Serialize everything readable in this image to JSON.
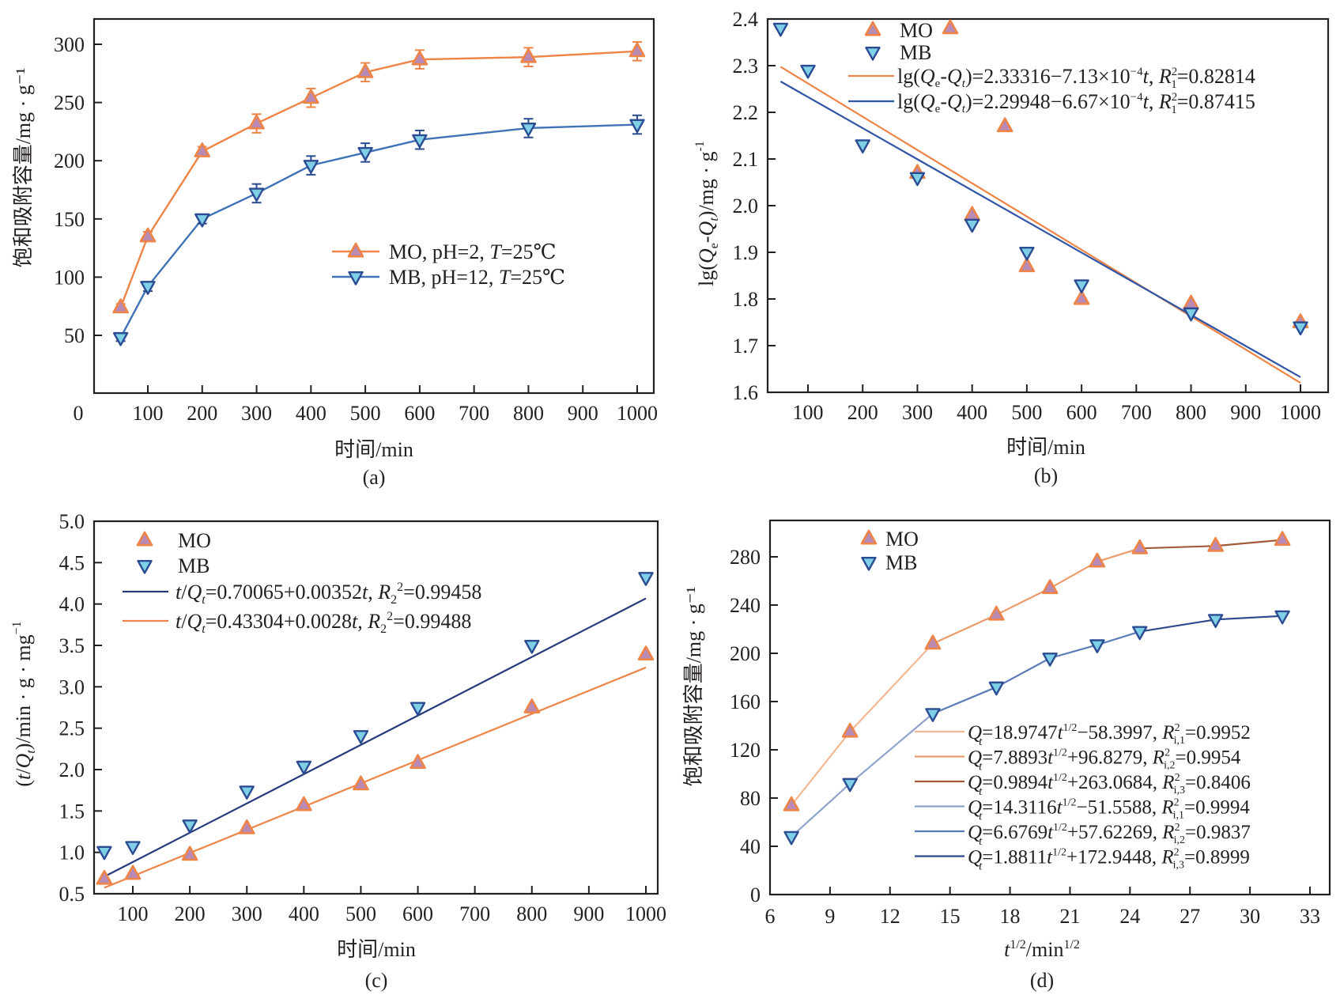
{
  "colors": {
    "mo_line": "#ee8446",
    "mo_marker_fill": "#b98ab4",
    "mo_marker_stroke": "#ee8446",
    "mb_line": "#3f72b6",
    "mb_marker_fill": "#7fd0e6",
    "mb_marker_stroke": "#2b4b93",
    "fit_mo": "#ee8446",
    "fit_mb_b": "#2f55a4",
    "fit_mb_c": "#273a7c",
    "d_mo_1": "#f2b893",
    "d_mo_2": "#eb9b6c",
    "d_mo_3": "#a25a3a",
    "d_mb_1": "#8fa3cc",
    "d_mb_2": "#5c7bb7",
    "d_mb_3": "#2d4a8d",
    "axis": "#231f20"
  },
  "chart_data": [
    {
      "id": "a",
      "type": "line",
      "panel_label": "(a)",
      "xlabel": "时间/min",
      "ylabel": "饱和吸附容量/mg · g⁻¹",
      "xlim": [
        -40,
        1020
      ],
      "ylim": [
        0,
        325
      ],
      "xticks": [
        100,
        200,
        300,
        400,
        500,
        600,
        700,
        800,
        900,
        1000
      ],
      "xtick_extra_label": "0",
      "yticks": [
        50,
        100,
        150,
        200,
        250,
        300
      ],
      "grid": false,
      "legend_position": "center-right",
      "series": [
        {
          "name": "MO, pH=2, T=25℃",
          "legend_prefix": "MO, pH=2, ",
          "legend_italic": "T",
          "legend_suffix": "=25℃",
          "marker": "triangle-up",
          "x": [
            50,
            100,
            200,
            300,
            400,
            500,
            600,
            800,
            1000
          ],
          "y": [
            74,
            135,
            208,
            232,
            254,
            276,
            287,
            289,
            294
          ],
          "yerr": [
            3,
            4,
            4,
            8,
            8,
            8,
            8,
            8,
            8
          ]
        },
        {
          "name": "MB, pH=12, T=25℃",
          "legend_prefix": "MB, pH=12, ",
          "legend_italic": "T",
          "legend_suffix": "=25℃",
          "marker": "triangle-down",
          "x": [
            50,
            100,
            200,
            300,
            400,
            500,
            600,
            800,
            1000
          ],
          "y": [
            48,
            92,
            150,
            172,
            196,
            207,
            218,
            228,
            231
          ],
          "yerr": [
            3,
            4,
            4,
            8,
            8,
            8,
            8,
            8,
            8
          ]
        }
      ]
    },
    {
      "id": "b",
      "type": "scatter",
      "panel_label": "(b)",
      "xlabel": "时间/min",
      "ylabel_parts": [
        "lg(",
        "Q",
        "e",
        "-",
        "Q",
        "t",
        ")/mg · g",
        "-1"
      ],
      "xlim": [
        35,
        1050
      ],
      "ylim": [
        1.6,
        2.4
      ],
      "xticks": [
        100,
        200,
        300,
        400,
        500,
        600,
        700,
        800,
        900,
        1000
      ],
      "yticks": [
        1.6,
        1.7,
        1.8,
        1.9,
        2.0,
        2.1,
        2.2,
        2.3,
        2.4
      ],
      "ytick_decimals": 1,
      "grid": false,
      "legend_position": "top-center",
      "series": [
        {
          "name": "MO",
          "marker": "triangle-up",
          "x": [
            360,
            300,
            400,
            460,
            500,
            600,
            800,
            1000
          ],
          "y": [
            2.38,
            2.07,
            1.98,
            2.17,
            1.87,
            1.8,
            1.79,
            1.75
          ]
        },
        {
          "name": "MB",
          "marker": "triangle-down",
          "x": [
            50,
            100,
            200,
            300,
            400,
            500,
            600,
            800,
            1000
          ],
          "y": [
            2.38,
            2.29,
            2.13,
            2.06,
            1.96,
            1.9,
            1.83,
            1.77,
            1.74
          ]
        }
      ],
      "fits": [
        {
          "label_pre": "lg(",
          "label_eq": "=2.33316−7.13×10",
          "label_exp": "−4",
          "label_tail": "=0.82814",
          "intercept": 2.33316,
          "slope": -0.000713,
          "x_range": [
            50,
            1000
          ],
          "color_key": "fit_mo"
        },
        {
          "label_pre": "lg(",
          "label_eq": "=2.29948−6.67×10",
          "label_exp": "−4",
          "label_tail": "=0.87415",
          "intercept": 2.29948,
          "slope": -0.000667,
          "x_range": [
            50,
            1000
          ],
          "color_key": "fit_mb_b"
        }
      ]
    },
    {
      "id": "c",
      "type": "scatter",
      "panel_label": "(c)",
      "xlabel": "时间/min",
      "ylabel": "(t/Qt)/min · g · mg⁻¹",
      "xlim": [
        30,
        1040
      ],
      "ylim": [
        0.5,
        5.0
      ],
      "xticks": [
        100,
        200,
        300,
        400,
        500,
        600,
        700,
        800,
        900,
        1000
      ],
      "yticks": [
        0.5,
        1.0,
        1.5,
        2.0,
        2.5,
        3.0,
        3.5,
        4.0,
        4.5,
        5.0
      ],
      "ytick_decimals": 1,
      "grid": false,
      "legend_position": "top-left",
      "series": [
        {
          "name": "MO",
          "marker": "triangle-up",
          "x": [
            50,
            100,
            200,
            300,
            400,
            500,
            600,
            800,
            1000
          ],
          "y": [
            0.68,
            0.74,
            0.97,
            1.29,
            1.57,
            1.82,
            2.08,
            2.75,
            3.39
          ]
        },
        {
          "name": "MB",
          "marker": "triangle-down",
          "x": [
            50,
            100,
            200,
            300,
            400,
            500,
            600,
            800,
            1000
          ],
          "y": [
            1.01,
            1.07,
            1.33,
            1.74,
            2.04,
            2.41,
            2.75,
            3.5,
            4.32
          ]
        }
      ],
      "fits": [
        {
          "label_eq": "=0.70065+0.00352",
          "label_tail": "=0.99458",
          "intercept": 0.70065,
          "slope": 0.00352,
          "x_range": [
            50,
            1000
          ],
          "color_key": "fit_mb_c",
          "display_offset": 0.17
        },
        {
          "label_eq": "=0.43304+0.0028",
          "label_tail": "=0.99488",
          "intercept": 0.43304,
          "slope": 0.0028,
          "x_range": [
            50,
            1000
          ],
          "color_key": "fit_mo",
          "display_offset": 0.0
        }
      ]
    },
    {
      "id": "d",
      "type": "line",
      "panel_label": "(d)",
      "xlabel": "t^1/2/min^1/2",
      "ylabel": "饱和吸附容量/mg · g⁻¹",
      "xlim": [
        6,
        34
      ],
      "ylim": [
        0,
        310
      ],
      "xticks": [
        6,
        9,
        12,
        15,
        18,
        21,
        24,
        27,
        30,
        33
      ],
      "yticks": [
        0,
        40,
        80,
        120,
        160,
        200,
        240,
        280
      ],
      "grid": false,
      "legend_position": "top-left / bottom-right",
      "series": [
        {
          "name": "MO",
          "marker": "triangle-up",
          "x": [
            7.07,
            10.0,
            14.14,
            17.32,
            20.0,
            22.36,
            24.49,
            28.28,
            31.62
          ],
          "y": [
            74,
            135,
            208,
            232,
            254,
            276,
            287,
            289,
            294
          ]
        },
        {
          "name": "MB",
          "marker": "triangle-down",
          "x": [
            7.07,
            10.0,
            14.14,
            17.32,
            20.0,
            22.36,
            24.49,
            28.28,
            31.62
          ],
          "y": [
            48,
            92,
            150,
            172,
            196,
            207,
            218,
            228,
            231
          ]
        }
      ],
      "fits": [
        {
          "eq": "=18.9747",
          "mid": "−58.3997, ",
          "sub": "i,1",
          "r2": "=0.9952",
          "color_key": "d_mo_1",
          "segment": [
            0,
            2
          ],
          "series": 0
        },
        {
          "eq": "=7.8893",
          "mid": "+96.8279, ",
          "sub": "i,2",
          "r2": "=0.9954",
          "color_key": "d_mo_2",
          "segment": [
            2,
            6
          ],
          "series": 0
        },
        {
          "eq": "=0.9894",
          "mid": "+263.0684, ",
          "sub": "i,3",
          "r2": "=0.8406",
          "color_key": "d_mo_3",
          "segment": [
            6,
            8
          ],
          "series": 0
        },
        {
          "eq": "=14.3116",
          "mid": "−51.5588, ",
          "sub": "i,1",
          "r2": "=0.9994",
          "color_key": "d_mb_1",
          "segment": [
            0,
            2
          ],
          "series": 1
        },
        {
          "eq": "=6.6769",
          "mid": "+57.62269, ",
          "sub": "i,2",
          "r2": "=0.9837",
          "color_key": "d_mb_2",
          "segment": [
            2,
            6
          ],
          "series": 1
        },
        {
          "eq": "=1.8811",
          "mid": "+172.9448, ",
          "sub": "i,3",
          "r2": "=0.8999",
          "color_key": "d_mb_3",
          "segment": [
            6,
            8
          ],
          "series": 1
        }
      ]
    }
  ]
}
